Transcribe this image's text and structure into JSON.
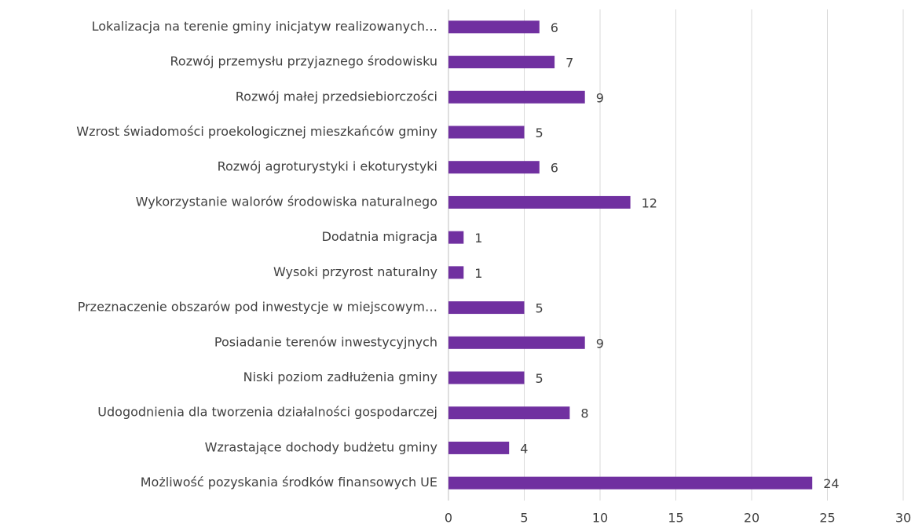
{
  "chart_data": {
    "type": "bar",
    "orientation": "horizontal",
    "categories": [
      "Lokalizacja na terenie gminy inicjatyw realizowanych…",
      "Rozwój przemysłu przyjaznego środowisku",
      "Rozwój małej przedsiebiorczości",
      "Wzrost świadomości proekologicznej mieszkańców gminy",
      "Rozwój agroturystyki i ekoturystyki",
      "Wykorzystanie walorów środowiska naturalnego",
      "Dodatnia migracja",
      "Wysoki przyrost naturalny",
      "Przeznaczenie obszarów pod inwestycje w miejscowym…",
      "Posiadanie terenów inwestycyjnych",
      "Niski poziom zadłużenia gminy",
      "Udogodnienia dla tworzenia działalności gospodarczej",
      "Wzrastające dochody budżetu gminy",
      "Możliwość pozyskania środków finansowych UE"
    ],
    "values": [
      6,
      7,
      9,
      5,
      6,
      12,
      1,
      1,
      5,
      9,
      5,
      8,
      4,
      24
    ],
    "color": "#7030a0",
    "xlim": [
      0,
      30
    ],
    "xticks": [
      0,
      5,
      10,
      15,
      20,
      25,
      30
    ],
    "grid": true
  }
}
